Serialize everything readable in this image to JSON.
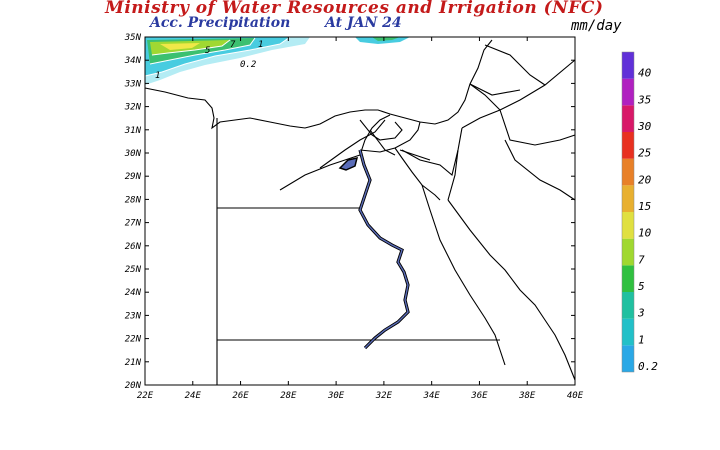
{
  "header": {
    "title": "Ministry of Water Resources and Irrigation (NFC)",
    "subtitle": "Acc. Precipitation",
    "date": "At JAN 24",
    "units": "mm/day"
  },
  "axes": {
    "lon_labels": [
      "22E",
      "24E",
      "26E",
      "28E",
      "30E",
      "32E",
      "34E",
      "36E",
      "38E",
      "40E"
    ],
    "lat_labels": [
      "20N",
      "21N",
      "22N",
      "23N",
      "24N",
      "25N",
      "26N",
      "27N",
      "28N",
      "29N",
      "30N",
      "31N",
      "32N",
      "33N",
      "34N",
      "35N"
    ]
  },
  "contour_labels": [
    "5",
    "7",
    "1",
    "1",
    "0.2"
  ],
  "colorbar": {
    "levels": [
      "0.2",
      "1",
      "3",
      "5",
      "7",
      "10",
      "15",
      "20",
      "25",
      "30",
      "35",
      "40"
    ],
    "colors": [
      "#2aa8e6",
      "#22c0c8",
      "#20c0a0",
      "#30c040",
      "#a0d830",
      "#e0e040",
      "#e8b030",
      "#e88028",
      "#e83020",
      "#d81868",
      "#b020c0",
      "#6030d8"
    ]
  }
}
